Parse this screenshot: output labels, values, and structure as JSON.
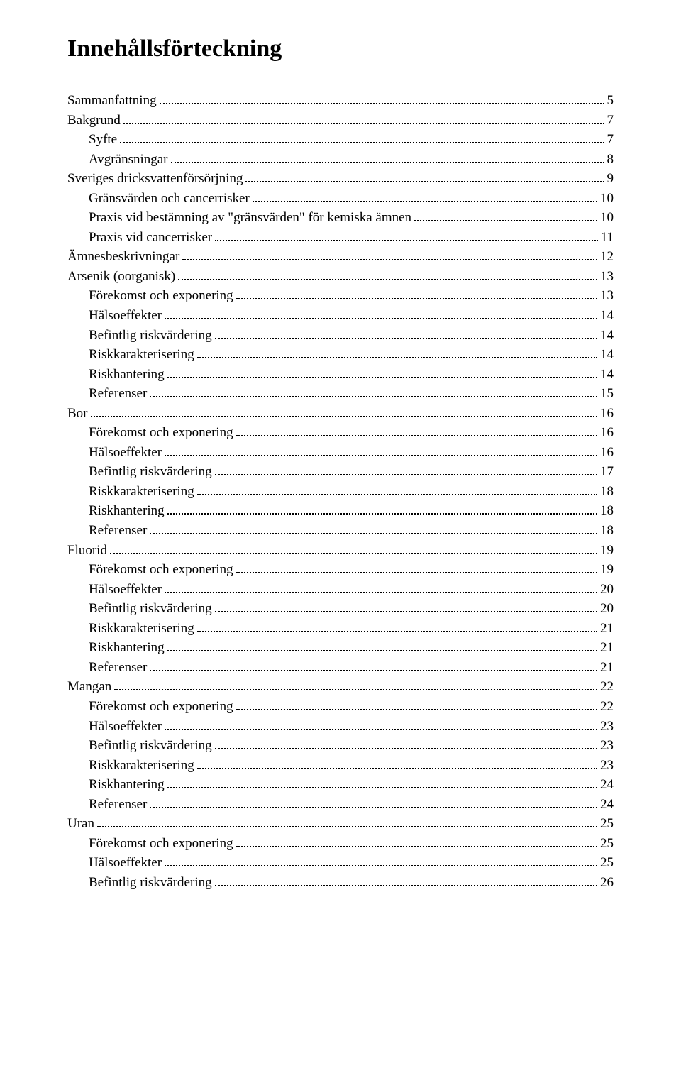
{
  "title": "Innehållsförteckning",
  "entries": [
    {
      "label": "Sammanfattning",
      "page": "5",
      "indent": 0
    },
    {
      "label": "Bakgrund",
      "page": "7",
      "indent": 0
    },
    {
      "label": "Syfte",
      "page": "7",
      "indent": 1
    },
    {
      "label": "Avgränsningar",
      "page": "8",
      "indent": 1
    },
    {
      "label": "Sveriges dricksvattenförsörjning",
      "page": "9",
      "indent": 0
    },
    {
      "label": "Gränsvärden och cancerrisker",
      "page": "10",
      "indent": 1
    },
    {
      "label": "Praxis vid bestämning av \"gränsvärden\" för kemiska ämnen",
      "page": "10",
      "indent": 1
    },
    {
      "label": "Praxis  vid cancerrisker",
      "page": "11",
      "indent": 1
    },
    {
      "label": "Ämnesbeskrivningar",
      "page": "12",
      "indent": 0
    },
    {
      "label": "Arsenik (oorganisk)",
      "page": "13",
      "indent": 0
    },
    {
      "label": "Förekomst och exponering",
      "page": "13",
      "indent": 1
    },
    {
      "label": "Hälsoeffekter",
      "page": "14",
      "indent": 1
    },
    {
      "label": "Befintlig riskvärdering",
      "page": "14",
      "indent": 1
    },
    {
      "label": "Riskkarakterisering",
      "page": "14",
      "indent": 1
    },
    {
      "label": "Riskhantering",
      "page": "14",
      "indent": 1
    },
    {
      "label": "Referenser",
      "page": "15",
      "indent": 1
    },
    {
      "label": "Bor",
      "page": "16",
      "indent": 0
    },
    {
      "label": "Förekomst och exponering",
      "page": "16",
      "indent": 1
    },
    {
      "label": "Hälsoeffekter",
      "page": "16",
      "indent": 1
    },
    {
      "label": "Befintlig riskvärdering",
      "page": "17",
      "indent": 1
    },
    {
      "label": "Riskkarakterisering",
      "page": "18",
      "indent": 1
    },
    {
      "label": "Riskhantering",
      "page": "18",
      "indent": 1
    },
    {
      "label": "Referenser",
      "page": "18",
      "indent": 1
    },
    {
      "label": "Fluorid",
      "page": "19",
      "indent": 0
    },
    {
      "label": "Förekomst och exponering",
      "page": "19",
      "indent": 1
    },
    {
      "label": "Hälsoeffekter",
      "page": "20",
      "indent": 1
    },
    {
      "label": "Befintlig riskvärdering",
      "page": "20",
      "indent": 1
    },
    {
      "label": "Riskkarakterisering",
      "page": "21",
      "indent": 1
    },
    {
      "label": "Riskhantering",
      "page": "21",
      "indent": 1
    },
    {
      "label": "Referenser",
      "page": "21",
      "indent": 1
    },
    {
      "label": "Mangan",
      "page": "22",
      "indent": 0
    },
    {
      "label": "Förekomst och exponering",
      "page": "22",
      "indent": 1
    },
    {
      "label": "Hälsoeffekter",
      "page": "23",
      "indent": 1
    },
    {
      "label": "Befintlig riskvärdering",
      "page": "23",
      "indent": 1
    },
    {
      "label": "Riskkarakterisering",
      "page": "23",
      "indent": 1
    },
    {
      "label": "Riskhantering",
      "page": "24",
      "indent": 1
    },
    {
      "label": "Referenser",
      "page": "24",
      "indent": 1
    },
    {
      "label": "Uran",
      "page": "25",
      "indent": 0
    },
    {
      "label": "Förekomst och exponering",
      "page": "25",
      "indent": 1
    },
    {
      "label": "Hälsoeffekter",
      "page": "25",
      "indent": 1
    },
    {
      "label": "Befintlig riskvärdering",
      "page": "26",
      "indent": 1
    }
  ]
}
